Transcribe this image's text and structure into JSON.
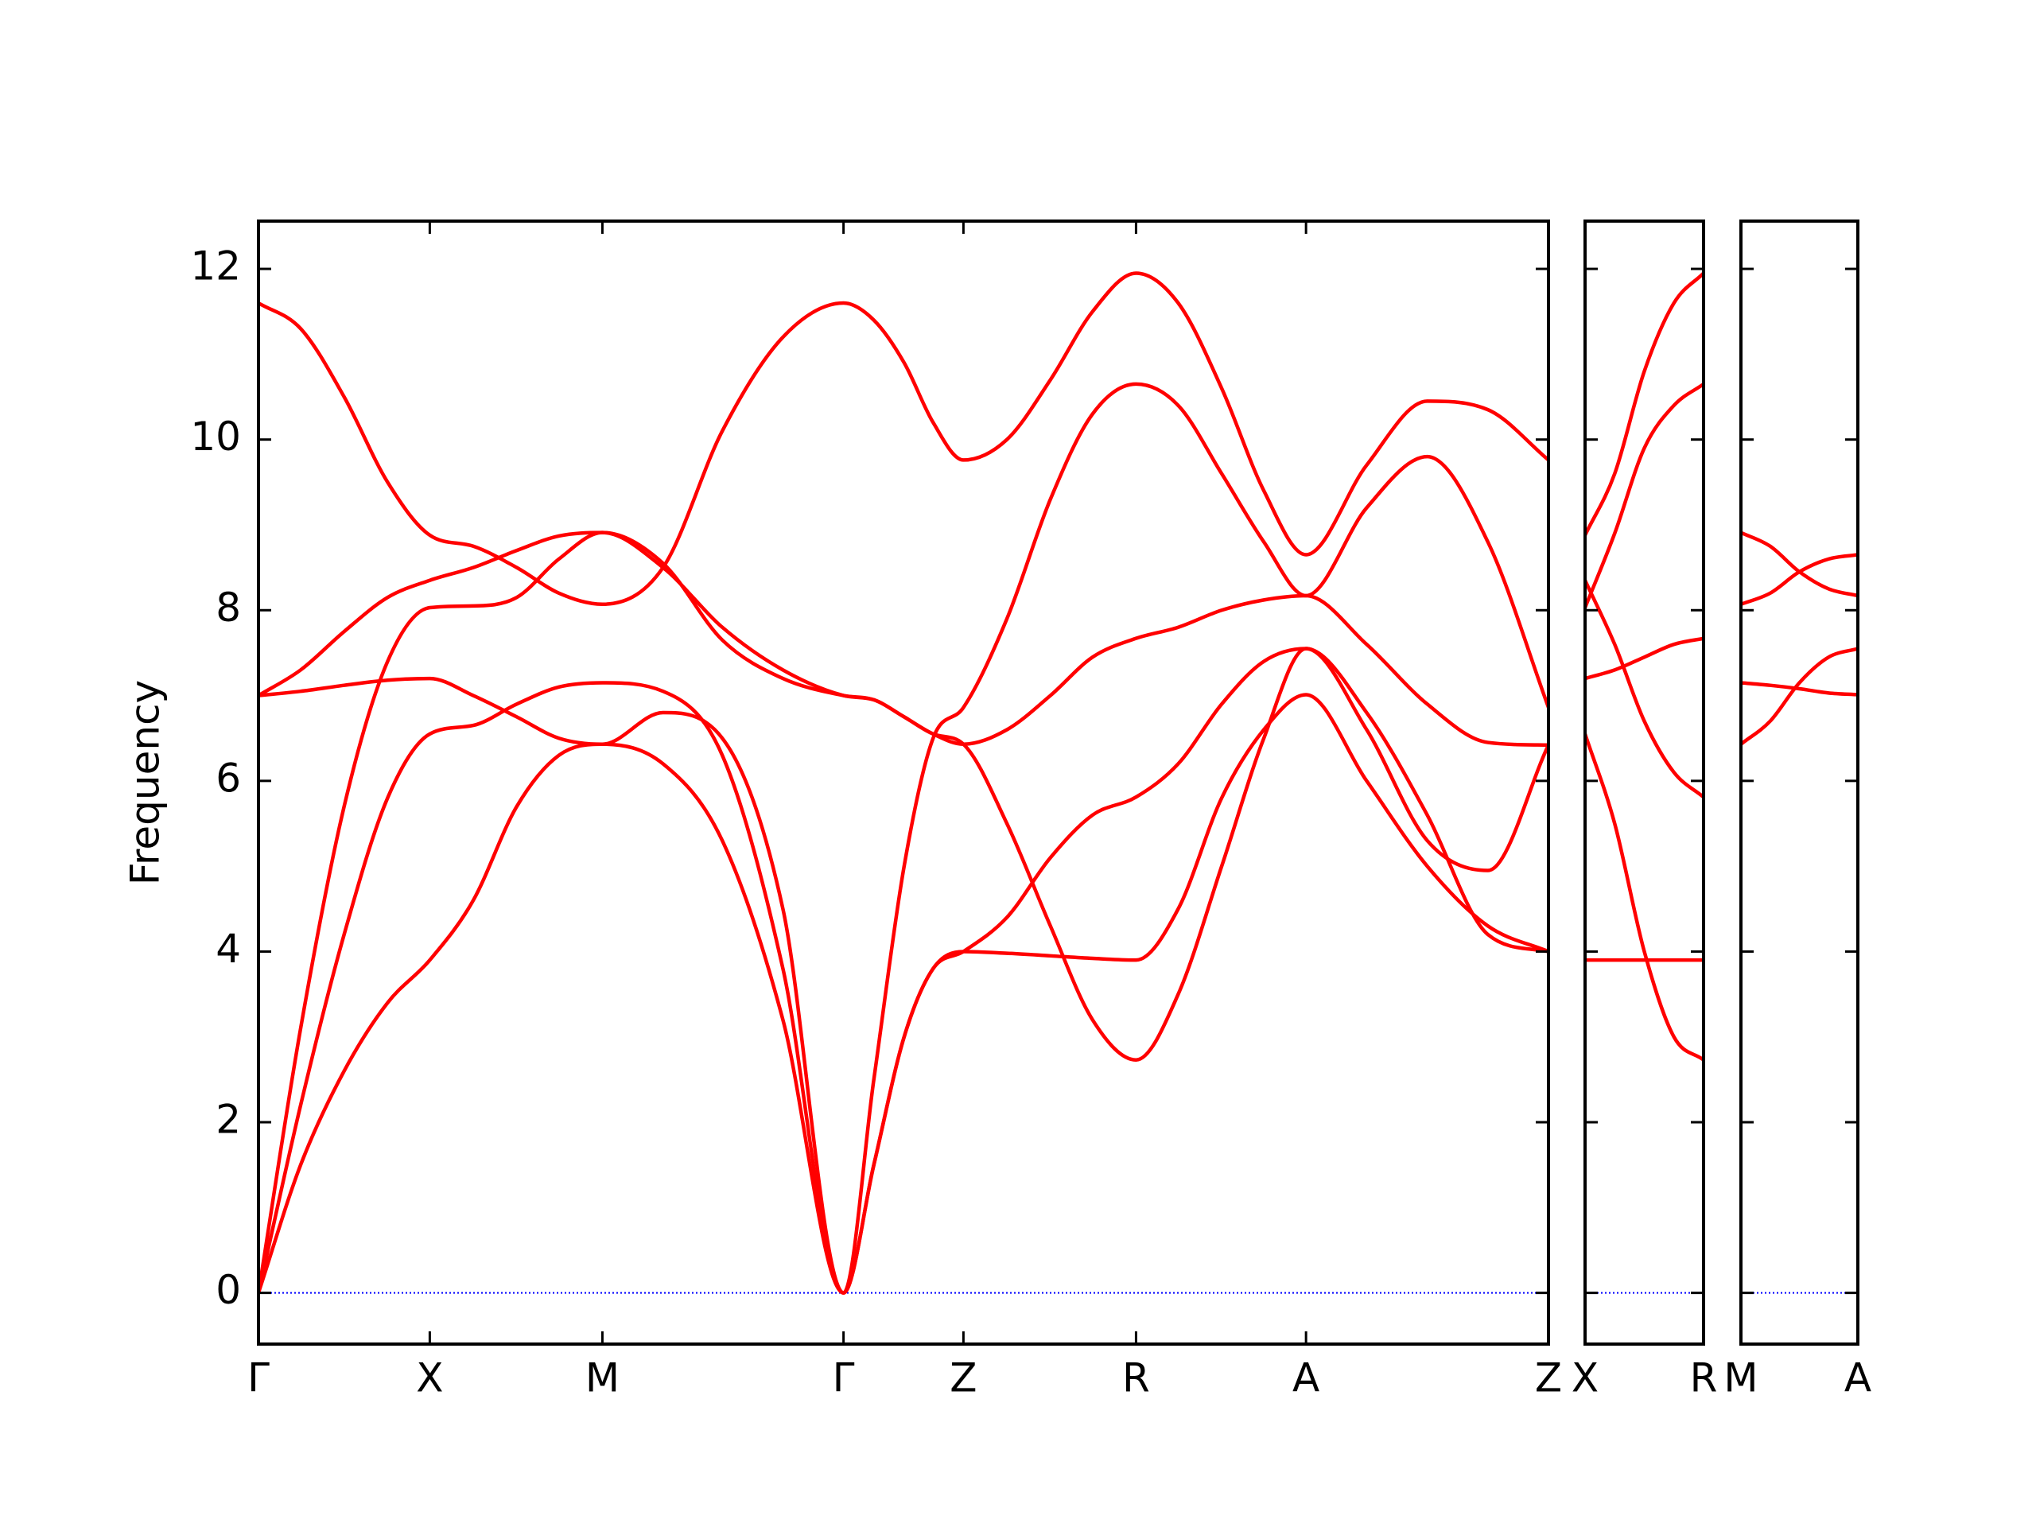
{
  "chart_data": [
    {
      "type": "line",
      "ylabel": "Frequency",
      "ytick_labels": true,
      "zero_line_color": "#0000ff",
      "xlim": [
        0,
        9.79
      ],
      "xticks": [
        {
          "value": 0,
          "label": "Γ"
        },
        {
          "value": 1.3,
          "label": "X"
        },
        {
          "value": 2.61,
          "label": "M"
        },
        {
          "value": 4.44,
          "label": "Γ"
        },
        {
          "value": 5.35,
          "label": "Z"
        },
        {
          "value": 6.66,
          "label": "R"
        },
        {
          "value": 7.95,
          "label": "A"
        },
        {
          "value": 9.79,
          "label": "Z"
        }
      ],
      "ylim": [
        -0.6,
        12.56
      ],
      "yticks": [
        0,
        2,
        4,
        6,
        8,
        10,
        12
      ],
      "x": [
        0,
        0.32,
        0.65,
        0.98,
        1.3,
        1.63,
        1.96,
        2.28,
        2.61,
        3.07,
        3.52,
        3.98,
        4.44,
        4.67,
        4.9,
        5.12,
        5.35,
        5.68,
        6.01,
        6.33,
        6.66,
        6.98,
        7.31,
        7.63,
        7.95,
        8.41,
        8.87,
        9.33,
        9.79
      ],
      "series": [
        {
          "color": "#ff0000",
          "values": [
            11.6,
            11.3,
            10.5,
            9.5,
            8.88,
            8.75,
            8.5,
            8.2,
            8.07,
            8.5,
            10.1,
            11.2,
            11.6,
            11.4,
            10.9,
            10.2,
            9.76,
            10.0,
            10.7,
            11.5,
            11.95,
            11.6,
            10.6,
            9.4,
            8.65,
            9.7,
            10.45,
            10.35,
            9.76
          ]
        },
        {
          "color": "#ff0000",
          "values": [
            7.0,
            7.3,
            7.75,
            8.15,
            8.35,
            8.5,
            8.7,
            8.87,
            8.91,
            8.55,
            7.65,
            7.2,
            7.0,
            6.95,
            6.75,
            6.55,
            6.43,
            6.6,
            7.0,
            7.45,
            7.67,
            7.8,
            8.0,
            8.12,
            8.17,
            7.6,
            6.9,
            6.45,
            6.42
          ]
        },
        {
          "color": "#ff0000",
          "values": [
            7.0,
            7.05,
            7.12,
            7.18,
            7.2,
            7.0,
            6.75,
            6.5,
            6.43,
            6.8,
            6.5,
            4.5,
            0,
            2.5,
            5.0,
            6.5,
            6.86,
            7.9,
            9.3,
            10.3,
            10.65,
            10.4,
            9.6,
            8.8,
            8.17,
            9.2,
            9.8,
            8.8,
            6.86
          ]
        },
        {
          "color": "#ff0000",
          "values": [
            0,
            3.1,
            5.7,
            7.4,
            8.03,
            8.05,
            8.15,
            8.6,
            8.91,
            8.5,
            7.8,
            7.3,
            7.0,
            6.95,
            6.75,
            6.55,
            6.43,
            5.5,
            4.3,
            3.2,
            2.73,
            3.5,
            5.0,
            6.5,
            7.55,
            6.8,
            5.6,
            4.2,
            4.0
          ]
        },
        {
          "color": "#ff0000",
          "values": [
            0,
            2.2,
            4.2,
            5.8,
            6.55,
            6.65,
            6.9,
            7.1,
            7.15,
            7.05,
            6.3,
            3.8,
            0,
            1.5,
            3.0,
            3.8,
            4.0,
            4.4,
            5.1,
            5.6,
            5.81,
            6.2,
            6.9,
            7.4,
            7.55,
            6.6,
            5.3,
            4.95,
            6.42
          ]
        },
        {
          "color": "#ff0000",
          "values": [
            0,
            1.5,
            2.6,
            3.4,
            3.9,
            4.6,
            5.7,
            6.3,
            6.43,
            6.2,
            5.3,
            3.2,
            0,
            1.5,
            3.0,
            3.8,
            4.0,
            3.98,
            3.95,
            3.92,
            3.9,
            4.5,
            5.8,
            6.6,
            7.01,
            6.0,
            5.0,
            4.3,
            4.0
          ]
        }
      ]
    },
    {
      "type": "line",
      "ytick_labels": false,
      "zero_line_color": "#0000ff",
      "xlim": [
        0,
        0.9
      ],
      "xticks": [
        {
          "value": 0,
          "label": "X"
        },
        {
          "value": 0.9,
          "label": "R"
        }
      ],
      "ylim": [
        -0.6,
        12.56
      ],
      "yticks": [
        0,
        2,
        4,
        6,
        8,
        10,
        12
      ],
      "x": [
        0,
        0.225,
        0.45,
        0.675,
        0.9
      ],
      "series": [
        {
          "color": "#ff0000",
          "values": [
            8.88,
            9.6,
            10.8,
            11.6,
            11.95
          ]
        },
        {
          "color": "#ff0000",
          "values": [
            8.03,
            8.9,
            9.9,
            10.4,
            10.65
          ]
        },
        {
          "color": "#ff0000",
          "values": [
            7.2,
            7.3,
            7.45,
            7.6,
            7.67
          ]
        },
        {
          "color": "#ff0000",
          "values": [
            8.35,
            7.6,
            6.7,
            6.1,
            5.81
          ]
        },
        {
          "color": "#ff0000",
          "values": [
            6.55,
            5.5,
            4.0,
            3.0,
            2.73
          ]
        },
        {
          "color": "#ff0000",
          "values": [
            3.9,
            3.9,
            3.9,
            3.9,
            3.9
          ]
        }
      ]
    },
    {
      "type": "line",
      "ytick_labels": false,
      "zero_line_color": "#0000ff",
      "xlim": [
        0,
        0.9
      ],
      "xticks": [
        {
          "value": 0,
          "label": "M"
        },
        {
          "value": 0.9,
          "label": "A"
        }
      ],
      "ylim": [
        -0.6,
        12.56
      ],
      "yticks": [
        0,
        2,
        4,
        6,
        8,
        10,
        12
      ],
      "x": [
        0,
        0.225,
        0.45,
        0.675,
        0.9
      ],
      "series": [
        {
          "color": "#ff0000",
          "values": [
            8.91,
            8.75,
            8.45,
            8.25,
            8.17
          ]
        },
        {
          "color": "#ff0000",
          "values": [
            8.07,
            8.2,
            8.45,
            8.6,
            8.65
          ]
        },
        {
          "color": "#ff0000",
          "values": [
            7.15,
            7.12,
            7.08,
            7.03,
            7.01
          ]
        },
        {
          "color": "#ff0000",
          "values": [
            6.43,
            6.7,
            7.15,
            7.45,
            7.55
          ]
        }
      ]
    }
  ]
}
